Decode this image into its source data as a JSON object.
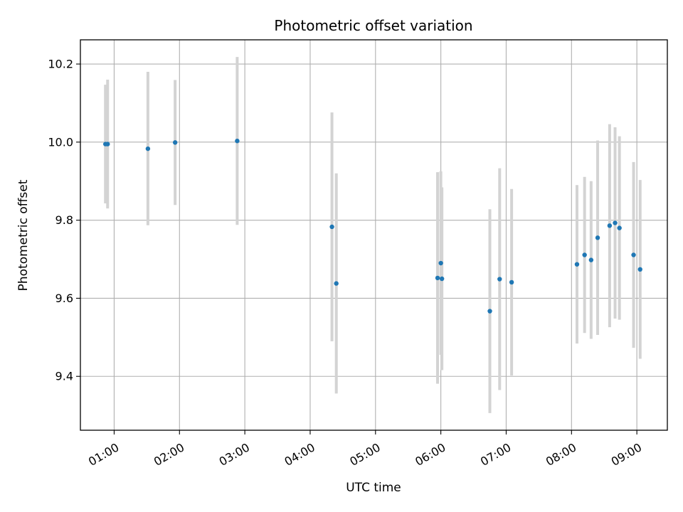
{
  "chart_data": {
    "type": "scatter",
    "title": "Photometric offset variation",
    "xlabel": "UTC time",
    "ylabel": "Photometric offset",
    "x_axis_kind": "time (hours UTC)",
    "xlim": [
      "00:29",
      "09:28"
    ],
    "ylim": [
      9.262,
      10.262
    ],
    "grid": true,
    "x_ticks": [
      "01:00",
      "02:00",
      "03:00",
      "04:00",
      "05:00",
      "06:00",
      "07:00",
      "08:00",
      "09:00"
    ],
    "y_ticks": [
      "9.4",
      "9.6",
      "9.8",
      "10.0",
      "10.2"
    ],
    "colors": {
      "points": "#1f77b4",
      "errorbars": "#d3d3d3",
      "grid": "#b0b0b0"
    },
    "series": [
      {
        "points": [
          {
            "x": "00:52",
            "y": 9.995,
            "low": 9.843,
            "high": 10.147
          },
          {
            "x": "00:54",
            "y": 9.995,
            "low": 9.83,
            "high": 10.16
          },
          {
            "x": "01:31",
            "y": 9.983,
            "low": 9.787,
            "high": 10.18
          },
          {
            "x": "01:56",
            "y": 9.999,
            "low": 9.839,
            "high": 10.159
          },
          {
            "x": "02:53",
            "y": 10.003,
            "low": 9.788,
            "high": 10.218
          },
          {
            "x": "04:20",
            "y": 9.783,
            "low": 9.49,
            "high": 10.076
          },
          {
            "x": "04:24",
            "y": 9.638,
            "low": 9.356,
            "high": 9.92
          },
          {
            "x": "05:57",
            "y": 9.652,
            "low": 9.381,
            "high": 9.923
          },
          {
            "x": "06:00",
            "y": 9.69,
            "low": 9.455,
            "high": 9.925
          },
          {
            "x": "06:01",
            "y": 9.65,
            "low": 9.416,
            "high": 9.884
          },
          {
            "x": "06:45",
            "y": 9.567,
            "low": 9.306,
            "high": 9.828
          },
          {
            "x": "06:54",
            "y": 9.649,
            "low": 9.365,
            "high": 9.933
          },
          {
            "x": "07:05",
            "y": 9.641,
            "low": 9.402,
            "high": 9.88
          },
          {
            "x": "08:05",
            "y": 9.687,
            "low": 9.484,
            "high": 9.89
          },
          {
            "x": "08:12",
            "y": 9.711,
            "low": 9.511,
            "high": 9.911
          },
          {
            "x": "08:18",
            "y": 9.698,
            "low": 9.496,
            "high": 9.9
          },
          {
            "x": "08:24",
            "y": 9.755,
            "low": 9.506,
            "high": 10.004
          },
          {
            "x": "08:35",
            "y": 9.786,
            "low": 9.526,
            "high": 10.046
          },
          {
            "x": "08:40",
            "y": 9.793,
            "low": 9.548,
            "high": 10.038
          },
          {
            "x": "08:44",
            "y": 9.78,
            "low": 9.545,
            "high": 10.015
          },
          {
            "x": "08:57",
            "y": 9.711,
            "low": 9.473,
            "high": 9.949
          },
          {
            "x": "09:03",
            "y": 9.674,
            "low": 9.445,
            "high": 9.903
          }
        ]
      }
    ]
  }
}
